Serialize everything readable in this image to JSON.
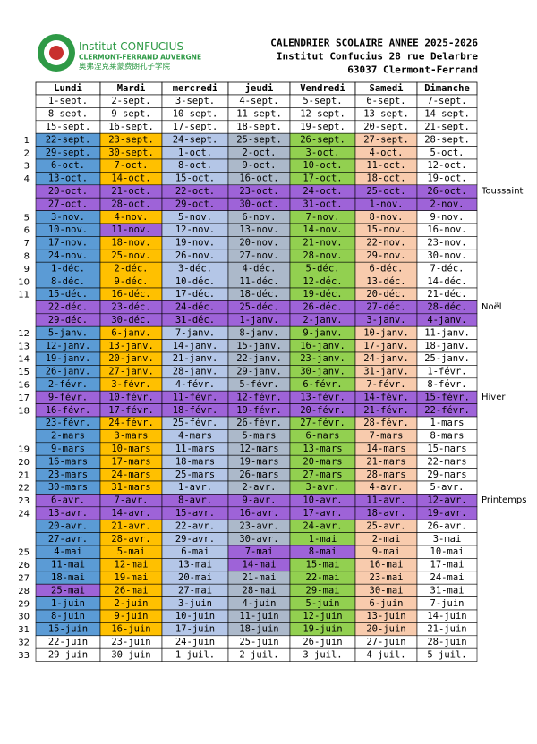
{
  "logo": {
    "name": "Institut CONFUCIUS",
    "city": "CLERMONT-FERRAND AUVERGNE",
    "chinese": "奥弗涅克莱蒙费朗孔子学院"
  },
  "header": {
    "title": "CALENDRIER SCOLAIRE ANNEE 2025-2026",
    "address": "Institut Confucius 28 rue Delarbre",
    "city": "63037 Clermont-Ferrand"
  },
  "table": {
    "columns": [
      "Lundi",
      "Mardi",
      "mercredi",
      "jeudi",
      "Vendredi",
      "Samedi",
      "Dimanche"
    ],
    "rows": [
      {
        "days": [
          "1-sept.",
          "2-sept.",
          "3-sept.",
          "4-sept.",
          "5-sept.",
          "6-sept.",
          "7-sept."
        ],
        "colors": [
          "#ffffff",
          "#ffffff",
          "#ffffff",
          "#ffffff",
          "#ffffff",
          "#ffffff",
          "#ffffff"
        ]
      },
      {
        "days": [
          "8-sept.",
          "9-sept.",
          "10-sept.",
          "11-sept.",
          "12-sept.",
          "13-sept.",
          "14-sept."
        ],
        "colors": [
          "#ffffff",
          "#ffffff",
          "#ffffff",
          "#ffffff",
          "#ffffff",
          "#ffffff",
          "#ffffff"
        ]
      },
      {
        "days": [
          "15-sept.",
          "16-sept.",
          "17-sept.",
          "18-sept.",
          "19-sept.",
          "20-sept.",
          "21-sept."
        ],
        "colors": [
          "#ffffff",
          "#ffffff",
          "#ffffff",
          "#ffffff",
          "#ffffff",
          "#ffffff",
          "#ffffff"
        ]
      },
      {
        "week": "1",
        "days": [
          "22-sept.",
          "23-sept.",
          "24-sept.",
          "25-sept.",
          "26-sept.",
          "27-sept.",
          "28-sept."
        ],
        "colors": [
          "#5b9bd5",
          "#ffc000",
          "#b4c6e7",
          "#acb9ca",
          "#92d050",
          "#f8cbad",
          "#ffffff"
        ]
      },
      {
        "week": "2",
        "days": [
          "29-sept.",
          "30-sept.",
          "1-oct.",
          "2-oct.",
          "3-oct.",
          "4-oct.",
          "5-oct."
        ],
        "colors": [
          "#5b9bd5",
          "#ffc000",
          "#b4c6e7",
          "#acb9ca",
          "#92d050",
          "#f8cbad",
          "#ffffff"
        ]
      },
      {
        "week": "3",
        "days": [
          "6-oct.",
          "7-oct.",
          "8-oct.",
          "9-oct.",
          "10-oct.",
          "11-oct.",
          "12-oct."
        ],
        "colors": [
          "#5b9bd5",
          "#ffc000",
          "#b4c6e7",
          "#acb9ca",
          "#92d050",
          "#f8cbad",
          "#ffffff"
        ]
      },
      {
        "week": "4",
        "days": [
          "13-oct.",
          "14-oct.",
          "15-oct.",
          "16-oct.",
          "17-oct.",
          "18-oct.",
          "19-oct."
        ],
        "colors": [
          "#5b9bd5",
          "#ffc000",
          "#b4c6e7",
          "#acb9ca",
          "#92d050",
          "#f8cbad",
          "#ffffff"
        ]
      },
      {
        "days": [
          "20-oct.",
          "21-oct.",
          "22-oct.",
          "23-oct.",
          "24-oct.",
          "25-oct.",
          "26-oct."
        ],
        "colors": [
          "#9e63d8",
          "#9e63d8",
          "#9e63d8",
          "#9e63d8",
          "#9e63d8",
          "#9e63d8",
          "#9e63d8"
        ],
        "note": "Toussaint"
      },
      {
        "days": [
          "27-oct.",
          "28-oct.",
          "29-oct.",
          "30-oct.",
          "31-oct.",
          "1-nov.",
          "2-nov."
        ],
        "colors": [
          "#9e63d8",
          "#9e63d8",
          "#9e63d8",
          "#9e63d8",
          "#9e63d8",
          "#9e63d8",
          "#9e63d8"
        ]
      },
      {
        "week": "5",
        "days": [
          "3-nov.",
          "4-nov.",
          "5-nov.",
          "6-nov.",
          "7-nov.",
          "8-nov.",
          "9-nov."
        ],
        "colors": [
          "#5b9bd5",
          "#ffc000",
          "#b4c6e7",
          "#acb9ca",
          "#92d050",
          "#f8cbad",
          "#ffffff"
        ]
      },
      {
        "week": "6",
        "days": [
          "10-nov.",
          "11-nov.",
          "12-nov.",
          "13-nov.",
          "14-nov.",
          "15-nov.",
          "16-nov."
        ],
        "colors": [
          "#5b9bd5",
          "#9e63d8",
          "#b4c6e7",
          "#acb9ca",
          "#92d050",
          "#f8cbad",
          "#ffffff"
        ]
      },
      {
        "week": "7",
        "days": [
          "17-nov.",
          "18-nov.",
          "19-nov.",
          "20-nov.",
          "21-nov.",
          "22-nov.",
          "23-nov."
        ],
        "colors": [
          "#5b9bd5",
          "#ffc000",
          "#b4c6e7",
          "#acb9ca",
          "#92d050",
          "#f8cbad",
          "#ffffff"
        ]
      },
      {
        "week": "8",
        "days": [
          "24-nov.",
          "25-nov.",
          "26-nov.",
          "27-nov.",
          "28-nov.",
          "29-nov.",
          "30-nov."
        ],
        "colors": [
          "#5b9bd5",
          "#ffc000",
          "#b4c6e7",
          "#acb9ca",
          "#92d050",
          "#f8cbad",
          "#ffffff"
        ]
      },
      {
        "week": "9",
        "days": [
          "1-déc.",
          "2-déc.",
          "3-déc.",
          "4-déc.",
          "5-déc.",
          "6-déc.",
          "7-déc."
        ],
        "colors": [
          "#5b9bd5",
          "#ffc000",
          "#b4c6e7",
          "#acb9ca",
          "#92d050",
          "#f8cbad",
          "#ffffff"
        ]
      },
      {
        "week": "10",
        "days": [
          "8-déc.",
          "9-déc.",
          "10-déc.",
          "11-déc.",
          "12-déc.",
          "13-déc.",
          "14-déc."
        ],
        "colors": [
          "#5b9bd5",
          "#ffc000",
          "#b4c6e7",
          "#acb9ca",
          "#92d050",
          "#f8cbad",
          "#ffffff"
        ]
      },
      {
        "week": "11",
        "days": [
          "15-déc.",
          "16-déc.",
          "17-déc.",
          "18-déc.",
          "19-déc.",
          "20-déc.",
          "21-déc."
        ],
        "colors": [
          "#5b9bd5",
          "#ffc000",
          "#b4c6e7",
          "#acb9ca",
          "#92d050",
          "#f8cbad",
          "#ffffff"
        ]
      },
      {
        "days": [
          "22-déc.",
          "23-déc.",
          "24-déc.",
          "25-déc.",
          "26-déc.",
          "27-déc.",
          "28-déc."
        ],
        "colors": [
          "#9e63d8",
          "#9e63d8",
          "#9e63d8",
          "#9e63d8",
          "#9e63d8",
          "#9e63d8",
          "#9e63d8"
        ],
        "note": "Noël"
      },
      {
        "days": [
          "29-déc.",
          "30-déc.",
          "31-déc.",
          "1-janv.",
          "2-janv.",
          "3-janv.",
          "4-janv."
        ],
        "colors": [
          "#9e63d8",
          "#9e63d8",
          "#9e63d8",
          "#9e63d8",
          "#9e63d8",
          "#9e63d8",
          "#9e63d8"
        ]
      },
      {
        "week": "12",
        "days": [
          "5-janv.",
          "6-janv.",
          "7-janv.",
          "8-janv.",
          "9-janv.",
          "10-janv.",
          "11-janv."
        ],
        "colors": [
          "#5b9bd5",
          "#ffc000",
          "#b4c6e7",
          "#acb9ca",
          "#92d050",
          "#f8cbad",
          "#ffffff"
        ]
      },
      {
        "week": "13",
        "days": [
          "12-janv.",
          "13-janv.",
          "14-janv.",
          "15-janv.",
          "16-janv.",
          "17-janv.",
          "18-janv."
        ],
        "colors": [
          "#5b9bd5",
          "#ffc000",
          "#b4c6e7",
          "#acb9ca",
          "#92d050",
          "#f8cbad",
          "#ffffff"
        ]
      },
      {
        "week": "14",
        "days": [
          "19-janv.",
          "20-janv.",
          "21-janv.",
          "22-janv.",
          "23-janv.",
          "24-janv.",
          "25-janv."
        ],
        "colors": [
          "#5b9bd5",
          "#ffc000",
          "#b4c6e7",
          "#acb9ca",
          "#92d050",
          "#f8cbad",
          "#ffffff"
        ]
      },
      {
        "week": "15",
        "days": [
          "26-janv.",
          "27-janv.",
          "28-janv.",
          "29-janv.",
          "30-janv.",
          "31-janv.",
          "1-févr."
        ],
        "colors": [
          "#5b9bd5",
          "#ffc000",
          "#b4c6e7",
          "#acb9ca",
          "#92d050",
          "#f8cbad",
          "#ffffff"
        ]
      },
      {
        "week": "16",
        "days": [
          "2-févr.",
          "3-févr.",
          "4-févr.",
          "5-févr.",
          "6-févr.",
          "7-févr.",
          "8-févr."
        ],
        "colors": [
          "#5b9bd5",
          "#ffc000",
          "#b4c6e7",
          "#acb9ca",
          "#92d050",
          "#f8cbad",
          "#ffffff"
        ]
      },
      {
        "week": "17",
        "days": [
          "9-févr.",
          "10-févr.",
          "11-févr.",
          "12-févr.",
          "13-févr.",
          "14-févr.",
          "15-févr."
        ],
        "colors": [
          "#9e63d8",
          "#9e63d8",
          "#9e63d8",
          "#9e63d8",
          "#9e63d8",
          "#9e63d8",
          "#9e63d8"
        ],
        "note": "Hiver"
      },
      {
        "week": "18",
        "days": [
          "16-févr.",
          "17-févr.",
          "18-févr.",
          "19-févr.",
          "20-févr.",
          "21-févr.",
          "22-févr."
        ],
        "colors": [
          "#9e63d8",
          "#9e63d8",
          "#9e63d8",
          "#9e63d8",
          "#9e63d8",
          "#9e63d8",
          "#9e63d8"
        ]
      },
      {
        "days": [
          "23-févr.",
          "24-févr.",
          "25-févr.",
          "26-févr.",
          "27-févr.",
          "28-févr.",
          "1-mars"
        ],
        "colors": [
          "#5b9bd5",
          "#ffc000",
          "#b4c6e7",
          "#acb9ca",
          "#92d050",
          "#f8cbad",
          "#ffffff"
        ]
      },
      {
        "days": [
          "2-mars",
          "3-mars",
          "4-mars",
          "5-mars",
          "6-mars",
          "7-mars",
          "8-mars"
        ],
        "colors": [
          "#5b9bd5",
          "#ffc000",
          "#b4c6e7",
          "#acb9ca",
          "#92d050",
          "#f8cbad",
          "#ffffff"
        ]
      },
      {
        "week": "19",
        "days": [
          "9-mars",
          "10-mars",
          "11-mars",
          "12-mars",
          "13-mars",
          "14-mars",
          "15-mars"
        ],
        "colors": [
          "#5b9bd5",
          "#ffc000",
          "#b4c6e7",
          "#acb9ca",
          "#92d050",
          "#f8cbad",
          "#ffffff"
        ]
      },
      {
        "week": "20",
        "days": [
          "16-mars",
          "17-mars",
          "18-mars",
          "19-mars",
          "20-mars",
          "21-mars",
          "22-mars"
        ],
        "colors": [
          "#5b9bd5",
          "#ffc000",
          "#b4c6e7",
          "#acb9ca",
          "#92d050",
          "#f8cbad",
          "#ffffff"
        ]
      },
      {
        "week": "21",
        "days": [
          "23-mars",
          "24-mars",
          "25-mars",
          "26-mars",
          "27-mars",
          "28-mars",
          "29-mars"
        ],
        "colors": [
          "#5b9bd5",
          "#ffc000",
          "#b4c6e7",
          "#acb9ca",
          "#92d050",
          "#f8cbad",
          "#ffffff"
        ]
      },
      {
        "week": "22",
        "days": [
          "30-mars",
          "31-mars",
          "1-avr.",
          "2-avr.",
          "3-avr.",
          "4-avr.",
          "5-avr."
        ],
        "colors": [
          "#5b9bd5",
          "#ffc000",
          "#b4c6e7",
          "#acb9ca",
          "#92d050",
          "#f8cbad",
          "#ffffff"
        ]
      },
      {
        "week": "23",
        "days": [
          "6-avr.",
          "7-avr.",
          "8-avr.",
          "9-avr.",
          "10-avr.",
          "11-avr.",
          "12-avr."
        ],
        "colors": [
          "#9e63d8",
          "#9e63d8",
          "#9e63d8",
          "#9e63d8",
          "#9e63d8",
          "#9e63d8",
          "#9e63d8"
        ],
        "note": "Printemps"
      },
      {
        "week": "24",
        "days": [
          "13-avr.",
          "14-avr.",
          "15-avr.",
          "16-avr.",
          "17-avr.",
          "18-avr.",
          "19-avr."
        ],
        "colors": [
          "#9e63d8",
          "#9e63d8",
          "#9e63d8",
          "#9e63d8",
          "#9e63d8",
          "#9e63d8",
          "#9e63d8"
        ]
      },
      {
        "days": [
          "20-avr.",
          "21-avr.",
          "22-avr.",
          "23-avr.",
          "24-avr.",
          "25-avr.",
          "26-avr."
        ],
        "colors": [
          "#5b9bd5",
          "#ffc000",
          "#b4c6e7",
          "#acb9ca",
          "#92d050",
          "#f8cbad",
          "#ffffff"
        ]
      },
      {
        "days": [
          "27-avr.",
          "28-avr.",
          "29-avr.",
          "30-avr.",
          "1-mai",
          "2-mai",
          "3-mai"
        ],
        "colors": [
          "#5b9bd5",
          "#ffc000",
          "#b4c6e7",
          "#acb9ca",
          "#92d050",
          "#f8cbad",
          "#ffffff"
        ]
      },
      {
        "week": "25",
        "days": [
          "4-mai",
          "5-mai",
          "6-mai",
          "7-mai",
          "8-mai",
          "9-mai",
          "10-mai"
        ],
        "colors": [
          "#5b9bd5",
          "#ffc000",
          "#b4c6e7",
          "#9e63d8",
          "#9e63d8",
          "#f8cbad",
          "#ffffff"
        ]
      },
      {
        "week": "26",
        "days": [
          "11-mai",
          "12-mai",
          "13-mai",
          "14-mai",
          "15-mai",
          "16-mai",
          "17-mai"
        ],
        "colors": [
          "#5b9bd5",
          "#ffc000",
          "#b4c6e7",
          "#9e63d8",
          "#92d050",
          "#f8cbad",
          "#ffffff"
        ]
      },
      {
        "week": "27",
        "days": [
          "18-mai",
          "19-mai",
          "20-mai",
          "21-mai",
          "22-mai",
          "23-mai",
          "24-mai"
        ],
        "colors": [
          "#5b9bd5",
          "#ffc000",
          "#b4c6e7",
          "#acb9ca",
          "#92d050",
          "#f8cbad",
          "#ffffff"
        ]
      },
      {
        "week": "28",
        "days": [
          "25-mai",
          "26-mai",
          "27-mai",
          "28-mai",
          "29-mai",
          "30-mai",
          "31-mai"
        ],
        "colors": [
          "#9e63d8",
          "#ffc000",
          "#b4c6e7",
          "#acb9ca",
          "#92d050",
          "#f8cbad",
          "#ffffff"
        ]
      },
      {
        "week": "29",
        "days": [
          "1-juin",
          "2-juin",
          "3-juin",
          "4-juin",
          "5-juin",
          "6-juin",
          "7-juin"
        ],
        "colors": [
          "#5b9bd5",
          "#ffc000",
          "#b4c6e7",
          "#acb9ca",
          "#92d050",
          "#f8cbad",
          "#ffffff"
        ]
      },
      {
        "week": "30",
        "days": [
          "8-juin",
          "9-juin",
          "10-juin",
          "11-juin",
          "12-juin",
          "13-juin",
          "14-juin"
        ],
        "colors": [
          "#5b9bd5",
          "#ffc000",
          "#b4c6e7",
          "#acb9ca",
          "#92d050",
          "#f8cbad",
          "#ffffff"
        ]
      },
      {
        "week": "31",
        "days": [
          "15-juin",
          "16-juin",
          "17-juin",
          "18-juin",
          "19-juin",
          "20-juin",
          "21-juin"
        ],
        "colors": [
          "#5b9bd5",
          "#ffc000",
          "#b4c6e7",
          "#acb9ca",
          "#92d050",
          "#f8cbad",
          "#ffffff"
        ]
      },
      {
        "week": "32",
        "days": [
          "22-juin",
          "23-juin",
          "24-juin",
          "25-juin",
          "26-juin",
          "27-juin",
          "28-juin"
        ],
        "colors": [
          "#ffffff",
          "#ffffff",
          "#ffffff",
          "#ffffff",
          "#ffffff",
          "#ffffff",
          "#ffffff"
        ]
      },
      {
        "week": "33",
        "days": [
          "29-juin",
          "30-juin",
          "1-juil.",
          "2-juil.",
          "3-juil.",
          "4-juil.",
          "5-juil."
        ],
        "colors": [
          "#ffffff",
          "#ffffff",
          "#ffffff",
          "#ffffff",
          "#ffffff",
          "#ffffff",
          "#ffffff"
        ]
      }
    ]
  }
}
